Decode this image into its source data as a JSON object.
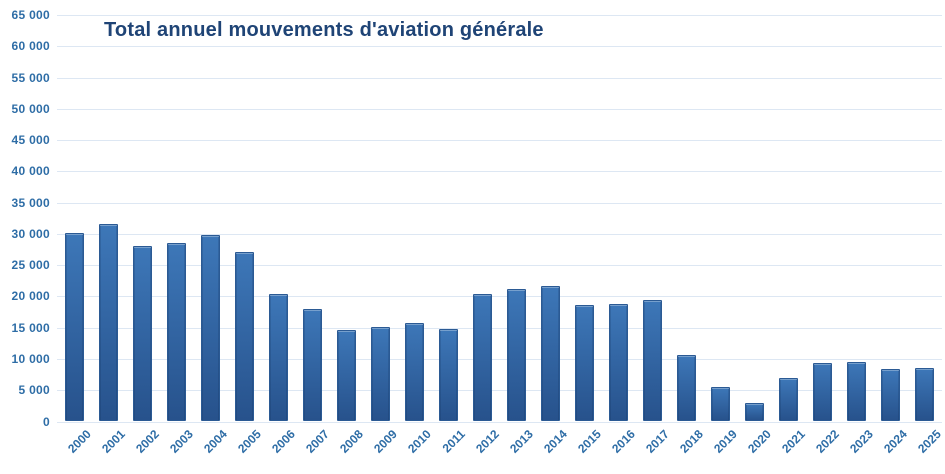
{
  "chart_data": {
    "type": "bar",
    "title": "Total annuel mouvements d'aviation générale",
    "categories": [
      "2000",
      "2001",
      "2002",
      "2003",
      "2004",
      "2005",
      "2006",
      "2007",
      "2008",
      "2009",
      "2010",
      "2011",
      "2012",
      "2013",
      "2014",
      "2015",
      "2016",
      "2017",
      "2018",
      "2019",
      "2020",
      "2021",
      "2022",
      "2023",
      "2024",
      "2025"
    ],
    "values": [
      30100,
      31600,
      28100,
      28500,
      29900,
      27100,
      20400,
      18000,
      14700,
      15100,
      15800,
      14800,
      20400,
      21200,
      21700,
      18700,
      18800,
      19400,
      10600,
      5500,
      3000,
      7000,
      9300,
      9500,
      8400,
      8600
    ],
    "xlabel": "",
    "ylabel": "",
    "ylim": [
      0,
      65000
    ],
    "ytick_step": 5000,
    "ytick_labels": [
      "0",
      "5 000",
      "10 000",
      "15 000",
      "20 000",
      "25 000",
      "30 000",
      "35 000",
      "40 000",
      "45 000",
      "50 000",
      "55 000",
      "60 000",
      "65 000"
    ],
    "grid": true,
    "legend": false,
    "x_tick_rotation": -45
  },
  "colors": {
    "background": "#ffffff",
    "title": "#1f4476",
    "axis_label": "#2e6da6",
    "gridline": "#dde7f3",
    "bar_gradient_top": "#3d77b8",
    "bar_gradient_bottom": "#27528c",
    "bar_border": "#2b5a94"
  }
}
